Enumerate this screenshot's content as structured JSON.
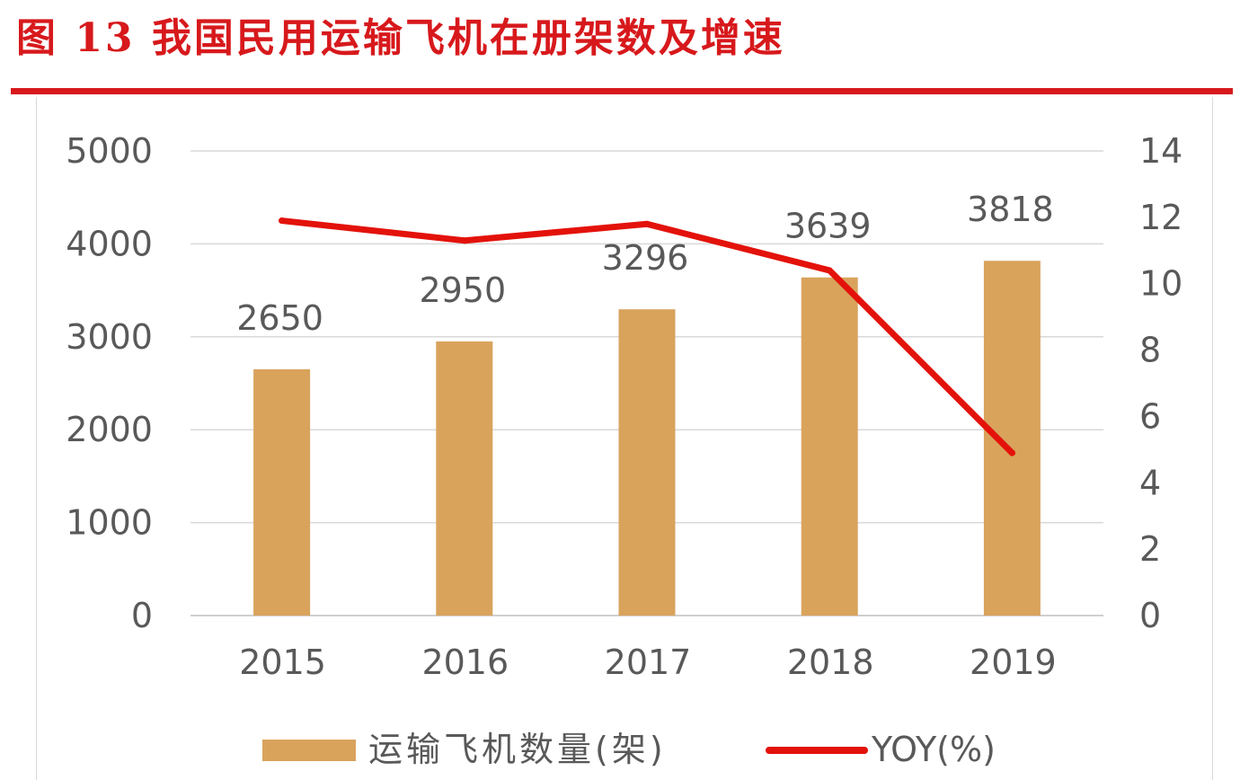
{
  "title": "图 13  我国民用运输飞机在册架数及增速",
  "chart_data": {
    "type": "bar",
    "categories": [
      "2015",
      "2016",
      "2017",
      "2018",
      "2019"
    ],
    "series": [
      {
        "name": "运输飞机数量(架)",
        "type": "bar",
        "axis": "left",
        "values": [
          2650,
          2950,
          3296,
          3639,
          3818
        ],
        "labels": [
          "2650",
          "2950",
          "3296",
          "3639",
          "3818"
        ],
        "color": "#d9a35c"
      },
      {
        "name": "YOY(%)",
        "type": "line",
        "axis": "right",
        "values": [
          11.9,
          11.3,
          11.8,
          10.4,
          4.9
        ],
        "color": "#e3120b"
      }
    ],
    "y_left": {
      "ticks": [
        "0",
        "1000",
        "2000",
        "3000",
        "4000",
        "5000"
      ],
      "ylim": [
        0,
        5000
      ]
    },
    "y_right": {
      "ticks": [
        "0",
        "2",
        "4",
        "6",
        "8",
        "10",
        "12",
        "14"
      ],
      "ylim": [
        0,
        14
      ]
    },
    "grid": true,
    "legend_position": "bottom"
  },
  "colors": {
    "title": "#d7191c",
    "bar": "#d9a35c",
    "line": "#e3120b",
    "grid": "#d9d9d9",
    "text": "#595959"
  }
}
